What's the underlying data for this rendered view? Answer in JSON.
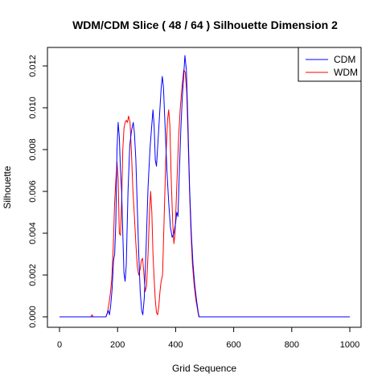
{
  "chart_data": {
    "type": "line",
    "title": "WDM/CDM Slice ( 48 / 64 )  Silhouette Dimension 2",
    "xlabel": "Grid Sequence",
    "ylabel": "Silhouette",
    "xlim": [
      0,
      1000
    ],
    "ylim": [
      0,
      0.0125
    ],
    "xticks": [
      "0",
      "200",
      "400",
      "600",
      "800",
      "1000"
    ],
    "yticks": [
      "0.000",
      "0.002",
      "0.004",
      "0.006",
      "0.008",
      "0.010",
      "0.012"
    ],
    "legend_position": "top-right",
    "series": [
      {
        "name": "CDM",
        "color": "#0000ff",
        "points": [
          [
            0,
            0
          ],
          [
            110,
            0
          ],
          [
            160,
            0
          ],
          [
            168,
            0.0003
          ],
          [
            172,
            0.0001
          ],
          [
            176,
            0.0005
          ],
          [
            181,
            0.0013
          ],
          [
            186,
            0.0027
          ],
          [
            190,
            0.003
          ],
          [
            194,
            0.0045
          ],
          [
            198,
            0.008
          ],
          [
            202,
            0.0093
          ],
          [
            206,
            0.0086
          ],
          [
            210,
            0.007
          ],
          [
            214,
            0.006
          ],
          [
            218,
            0.004
          ],
          [
            222,
            0.0021
          ],
          [
            226,
            0.0017
          ],
          [
            230,
            0.0025
          ],
          [
            236,
            0.006
          ],
          [
            242,
            0.0082
          ],
          [
            248,
            0.0089
          ],
          [
            254,
            0.0093
          ],
          [
            258,
            0.0088
          ],
          [
            263,
            0.0075
          ],
          [
            268,
            0.0052
          ],
          [
            273,
            0.003
          ],
          [
            278,
            0.0012
          ],
          [
            283,
            0.0003
          ],
          [
            287,
            0.0001
          ],
          [
            292,
            0.0009
          ],
          [
            298,
            0.0032
          ],
          [
            305,
            0.0062
          ],
          [
            312,
            0.0081
          ],
          [
            318,
            0.0092
          ],
          [
            322,
            0.0099
          ],
          [
            326,
            0.0091
          ],
          [
            330,
            0.0075
          ],
          [
            334,
            0.0072
          ],
          [
            338,
            0.0081
          ],
          [
            344,
            0.0095
          ],
          [
            350,
            0.0109
          ],
          [
            354,
            0.0115
          ],
          [
            358,
            0.011
          ],
          [
            364,
            0.009
          ],
          [
            370,
            0.007
          ],
          [
            376,
            0.0055
          ],
          [
            382,
            0.0043
          ],
          [
            388,
            0.0038
          ],
          [
            394,
            0.004
          ],
          [
            400,
            0.0045
          ],
          [
            404,
            0.005
          ],
          [
            408,
            0.0048
          ],
          [
            413,
            0.007
          ],
          [
            418,
            0.009
          ],
          [
            423,
            0.0105
          ],
          [
            428,
            0.0116
          ],
          [
            432,
            0.0125
          ],
          [
            437,
            0.0118
          ],
          [
            442,
            0.0095
          ],
          [
            448,
            0.0062
          ],
          [
            454,
            0.004
          ],
          [
            460,
            0.0025
          ],
          [
            466,
            0.0015
          ],
          [
            472,
            0.0008
          ],
          [
            478,
            0.0002
          ],
          [
            481,
            0
          ],
          [
            1000,
            0
          ]
        ]
      },
      {
        "name": "WDM",
        "color": "#ff0000",
        "points": [
          [
            0,
            0
          ],
          [
            108,
            0
          ],
          [
            112,
            0.0001
          ],
          [
            116,
            0
          ],
          [
            160,
            0
          ],
          [
            165,
            0.0002
          ],
          [
            170,
            0.0006
          ],
          [
            175,
            0.0011
          ],
          [
            180,
            0.0018
          ],
          [
            185,
            0.0033
          ],
          [
            190,
            0.0055
          ],
          [
            194,
            0.0065
          ],
          [
            198,
            0.0074
          ],
          [
            202,
            0.0066
          ],
          [
            206,
            0.004
          ],
          [
            210,
            0.0039
          ],
          [
            214,
            0.0055
          ],
          [
            218,
            0.008
          ],
          [
            222,
            0.009
          ],
          [
            226,
            0.0093
          ],
          [
            230,
            0.0094
          ],
          [
            234,
            0.0093
          ],
          [
            238,
            0.0096
          ],
          [
            243,
            0.0093
          ],
          [
            248,
            0.0078
          ],
          [
            253,
            0.006
          ],
          [
            258,
            0.0048
          ],
          [
            263,
            0.0035
          ],
          [
            268,
            0.0024
          ],
          [
            273,
            0.002
          ],
          [
            278,
            0.0023
          ],
          [
            282,
            0.0027
          ],
          [
            286,
            0.0028
          ],
          [
            290,
            0.0022
          ],
          [
            295,
            0.0012
          ],
          [
            300,
            0.0015
          ],
          [
            305,
            0.003
          ],
          [
            310,
            0.005
          ],
          [
            314,
            0.006
          ],
          [
            318,
            0.005
          ],
          [
            322,
            0.003
          ],
          [
            326,
            0.0018
          ],
          [
            330,
            0.0008
          ],
          [
            334,
            0.0002
          ],
          [
            338,
            0.0001
          ],
          [
            342,
            0.0005
          ],
          [
            346,
            0.0012
          ],
          [
            350,
            0.0017
          ],
          [
            355,
            0.002
          ],
          [
            360,
            0.0045
          ],
          [
            366,
            0.0075
          ],
          [
            372,
            0.0094
          ],
          [
            376,
            0.0099
          ],
          [
            380,
            0.0092
          ],
          [
            385,
            0.0065
          ],
          [
            390,
            0.0045
          ],
          [
            394,
            0.0035
          ],
          [
            398,
            0.004
          ],
          [
            402,
            0.0055
          ],
          [
            406,
            0.007
          ],
          [
            410,
            0.0085
          ],
          [
            416,
            0.01
          ],
          [
            422,
            0.011
          ],
          [
            428,
            0.0118
          ],
          [
            433,
            0.0117
          ],
          [
            438,
            0.0108
          ],
          [
            443,
            0.0085
          ],
          [
            448,
            0.006
          ],
          [
            453,
            0.004
          ],
          [
            458,
            0.0025
          ],
          [
            464,
            0.0015
          ],
          [
            470,
            0.0008
          ],
          [
            476,
            0.0003
          ],
          [
            480,
            0
          ],
          [
            1000,
            0
          ]
        ]
      }
    ]
  }
}
